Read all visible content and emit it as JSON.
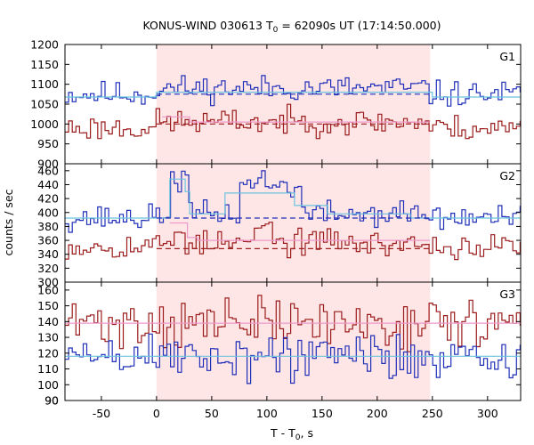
{
  "chart_data": {
    "type": "line",
    "title": {
      "main": "KONUS-WIND 030613 T",
      "sub": "0",
      "rest": " = 62090s UT (17:14:50.000)"
    },
    "xlabel": {
      "main": "T - T",
      "sub": "0",
      "rest": ", s"
    },
    "ylabel": "counts / sec",
    "xlim": [
      -83,
      330
    ],
    "xticks": [
      -50,
      0,
      50,
      100,
      150,
      200,
      250,
      300
    ],
    "highlight_interval": [
      0,
      248
    ],
    "colors": {
      "dark": "#9b1c1c",
      "blue": "#1f2fb8",
      "cyan": "#6ac3e0",
      "pink": "#ee99cc",
      "shade": "#ffe6e6"
    },
    "panels": [
      {
        "label": "G1",
        "ylim": [
          900,
          1200
        ],
        "yticks": [
          950,
          1000,
          1050,
          1100,
          1150,
          1200
        ],
        "series": [
          {
            "role": "blue",
            "seed": 11,
            "segments": [
              [
                -83,
                0,
                1075
              ],
              [
                0,
                248,
                1090
              ],
              [
                248,
                330,
                1075
              ]
            ],
            "noise": 16,
            "bumps": []
          },
          {
            "role": "dark",
            "seed": 23,
            "segments": [
              [
                -83,
                0,
                990
              ],
              [
                0,
                248,
                1005
              ],
              [
                248,
                330,
                990
              ]
            ],
            "noise": 16,
            "bumps": []
          }
        ],
        "fits": [
          {
            "role": "cyan",
            "dashed": false,
            "steps": [
              [
                -83,
                0,
                1068
              ],
              [
                0,
                250,
                1080
              ],
              [
                250,
                330,
                1068
              ]
            ]
          },
          {
            "role": "pink",
            "dashed": false,
            "steps": [
              [
                5,
                30,
                1018
              ],
              [
                30,
                248,
                1005
              ]
            ]
          },
          {
            "role": "dark",
            "dashed": true,
            "steps": [
              [
                0,
                248,
                1000
              ]
            ]
          },
          {
            "role": "blue",
            "dashed": true,
            "steps": [
              [
                0,
                248,
                1075
              ]
            ]
          }
        ]
      },
      {
        "label": "G2",
        "ylim": [
          300,
          470
        ],
        "yticks": [
          320,
          340,
          360,
          380,
          400,
          420,
          440,
          460
        ],
        "series": [
          {
            "role": "blue",
            "seed": 37,
            "segments": [
              [
                -83,
                0,
                392
              ],
              [
                0,
                248,
                398
              ],
              [
                248,
                330,
                392
              ]
            ],
            "noise": 9,
            "bumps": [
              [
                14,
                28,
                50
              ],
              [
                75,
                130,
                40
              ],
              [
                85,
                100,
                10
              ]
            ]
          },
          {
            "role": "dark",
            "seed": 53,
            "segments": [
              [
                -83,
                0,
                352
              ],
              [
                0,
                248,
                355
              ],
              [
                248,
                330,
                350
              ]
            ],
            "noise": 9,
            "bumps": [
              [
                15,
                25,
                22
              ],
              [
                90,
                110,
                22
              ],
              [
                150,
                165,
                14
              ]
            ]
          }
        ],
        "fits": [
          {
            "role": "cyan",
            "dashed": false,
            "steps": [
              [
                -83,
                12,
                392
              ],
              [
                12,
                26,
                448
              ],
              [
                26,
                30,
                430
              ],
              [
                30,
                62,
                398
              ],
              [
                62,
                125,
                428
              ],
              [
                125,
                155,
                410
              ],
              [
                155,
                230,
                398
              ],
              [
                230,
                330,
                392
              ]
            ]
          },
          {
            "role": "pink",
            "dashed": false,
            "steps": [
              [
                12,
                28,
                385
              ],
              [
                28,
                37,
                364
              ],
              [
                37,
                248,
                360
              ]
            ]
          },
          {
            "role": "dark",
            "dashed": true,
            "steps": [
              [
                0,
                248,
                348
              ]
            ]
          },
          {
            "role": "blue",
            "dashed": true,
            "steps": [
              [
                0,
                248,
                392
              ]
            ]
          }
        ]
      },
      {
        "label": "G3",
        "ylim": [
          90,
          165
        ],
        "yticks": [
          90,
          100,
          110,
          120,
          130,
          140,
          150,
          160
        ],
        "series": [
          {
            "role": "dark",
            "seed": 71,
            "segments": [
              [
                -83,
                330,
                139
              ]
            ],
            "noise": 8,
            "bumps": []
          },
          {
            "role": "blue",
            "seed": 89,
            "segments": [
              [
                -83,
                330,
                118
              ]
            ],
            "noise": 8,
            "bumps": []
          }
        ],
        "fits": [
          {
            "role": "pink",
            "dashed": false,
            "steps": [
              [
                -83,
                330,
                139
              ]
            ]
          },
          {
            "role": "cyan",
            "dashed": false,
            "steps": [
              [
                -83,
                330,
                118
              ]
            ]
          }
        ]
      }
    ]
  }
}
